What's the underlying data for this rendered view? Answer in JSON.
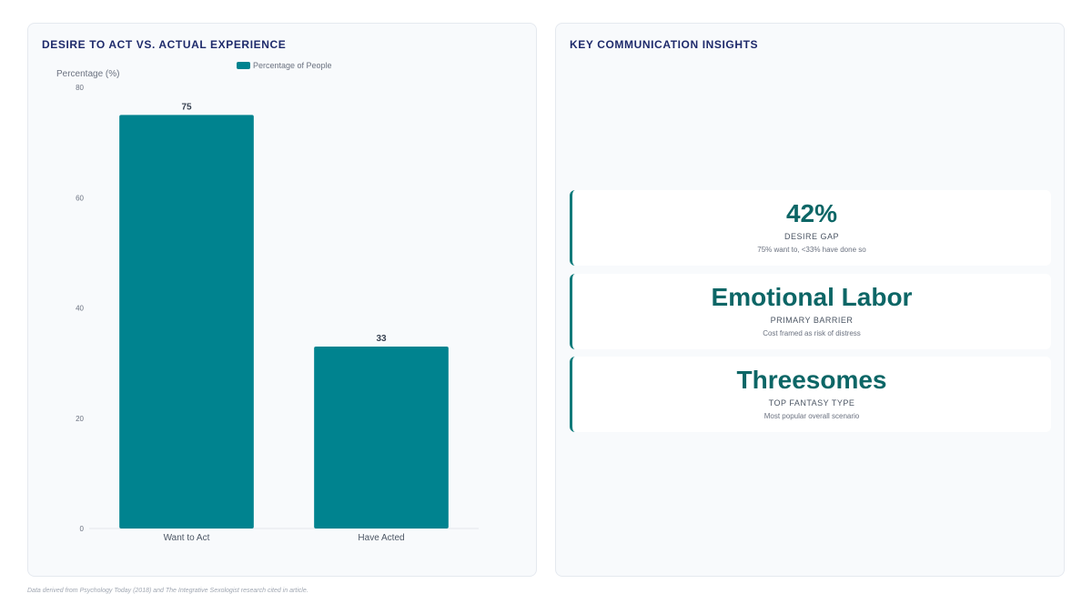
{
  "chart_panel": {
    "title": "DESIRE TO ACT VS. ACTUAL EXPERIENCE"
  },
  "insights_panel": {
    "title": "KEY COMMUNICATION INSIGHTS",
    "cards": [
      {
        "value": "42%",
        "label": "DESIRE GAP",
        "description": "75% want to, <33% have done so"
      },
      {
        "value": "Emotional Labor",
        "label": "PRIMARY BARRIER",
        "description": "Cost framed as risk of distress"
      },
      {
        "value": "Threesomes",
        "label": "TOP FANTASY TYPE",
        "description": "Most popular overall scenario"
      }
    ]
  },
  "footnote": "Data derived from Psychology Today (2018) and The Integrative Sexologist research cited in article.",
  "chart_data": {
    "type": "bar",
    "categories": [
      "Want to Act",
      "Have Acted"
    ],
    "series": [
      {
        "name": "Percentage of People",
        "values": [
          75,
          33
        ]
      }
    ],
    "ylabel": "Percentage (%)",
    "ylim": [
      0,
      80
    ],
    "yticks": [
      0,
      20,
      40,
      60,
      80
    ],
    "bar_color": "#00838f",
    "legend_position": "top-center",
    "grid": false,
    "data_labels": true
  }
}
